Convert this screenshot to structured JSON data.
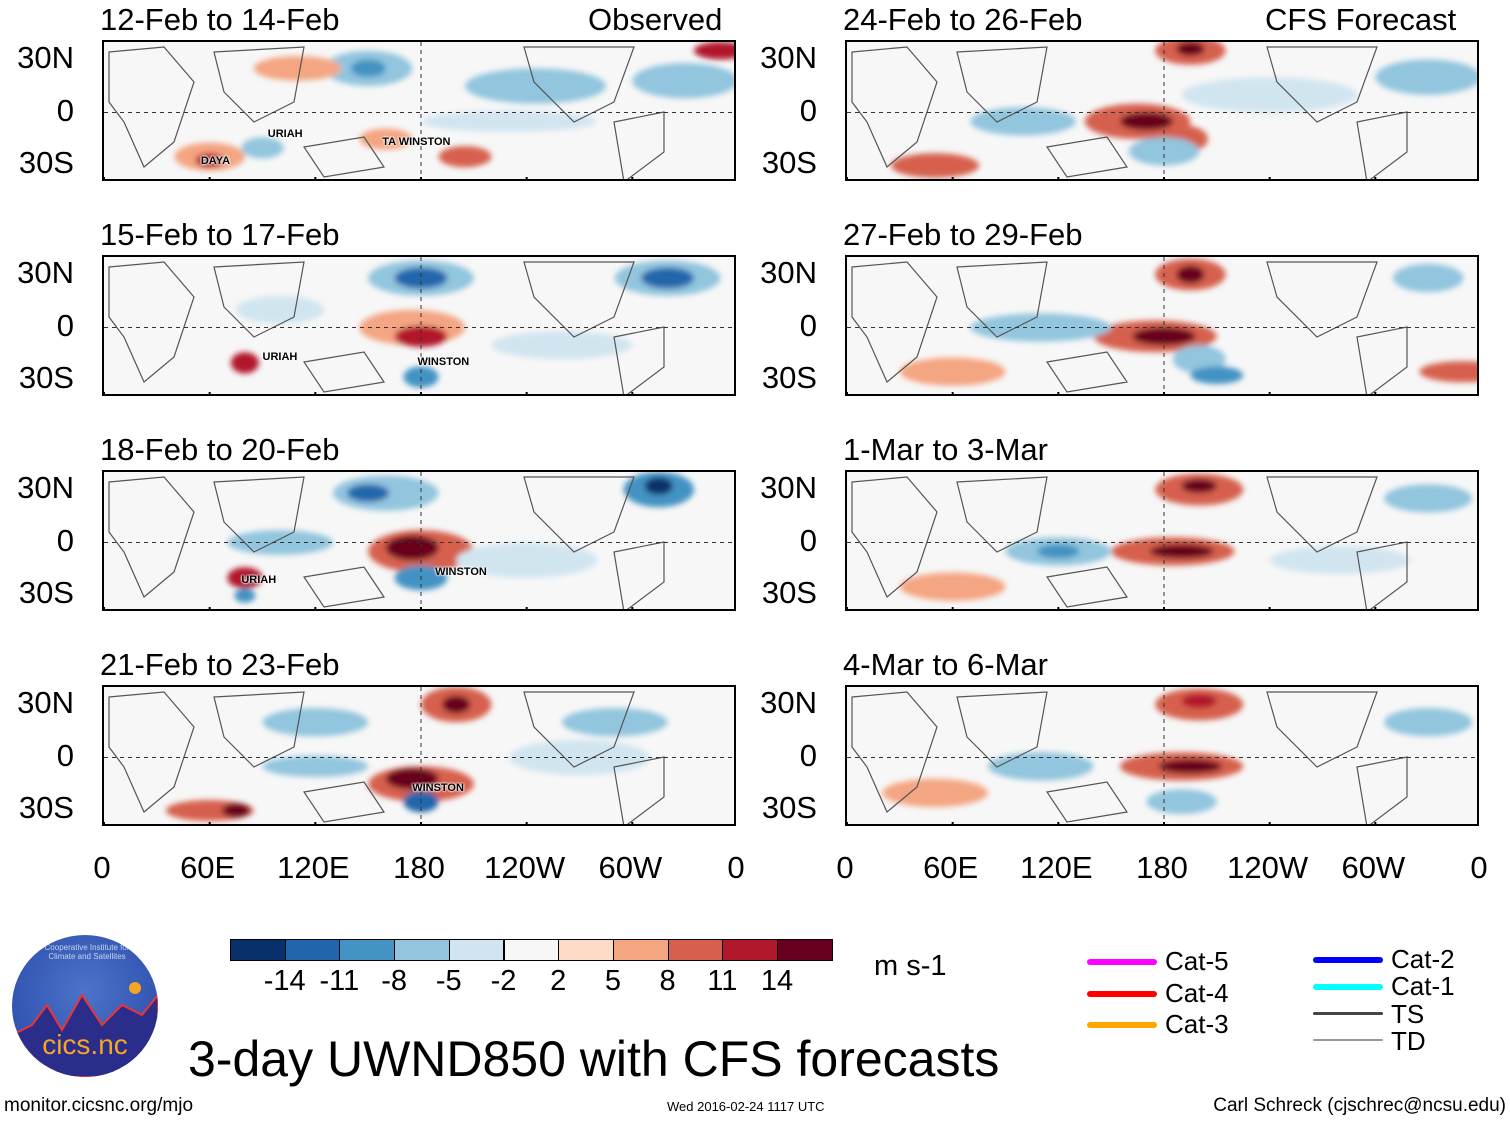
{
  "title": "3-day UWND850 with CFS forecasts",
  "left_header": "Observed",
  "right_header": "CFS Forecast",
  "lat_labels": [
    "30N",
    "0",
    "30S"
  ],
  "lon_labels": [
    "0",
    "60E",
    "120E",
    "180",
    "120W",
    "60W",
    "0"
  ],
  "panels": [
    {
      "title": "12-Feb to 14-Feb",
      "storms": [
        "URIAH",
        "DAYA",
        "TA WINSTON"
      ]
    },
    {
      "title": "15-Feb to 17-Feb",
      "storms": [
        "URIAH",
        "WINSTON"
      ]
    },
    {
      "title": "18-Feb to 20-Feb",
      "storms": [
        "URIAH",
        "WINSTON"
      ]
    },
    {
      "title": "21-Feb to 23-Feb",
      "storms": [
        "WINSTON"
      ]
    },
    {
      "title": "24-Feb to 26-Feb",
      "storms": []
    },
    {
      "title": "27-Feb to 29-Feb",
      "storms": []
    },
    {
      "title": "1-Mar to 3-Mar",
      "storms": []
    },
    {
      "title": "4-Mar to 6-Mar",
      "storms": []
    }
  ],
  "colorbar": {
    "colors": [
      "#08306b",
      "#2166ac",
      "#4393c3",
      "#92c5de",
      "#d1e5f0",
      "#f7f7f7",
      "#fddbc7",
      "#f4a582",
      "#d6604d",
      "#b2182b",
      "#67001f"
    ],
    "labels": [
      "-14",
      "-11",
      "-8",
      "-5",
      "-2",
      "2",
      "5",
      "8",
      "11",
      "14"
    ],
    "units": "m s-1"
  },
  "track_legend": [
    {
      "label": "Cat-5",
      "color": "#ff00ff"
    },
    {
      "label": "Cat-4",
      "color": "#ff0000"
    },
    {
      "label": "Cat-3",
      "color": "#ffa500"
    },
    {
      "label": "Cat-2",
      "color": "#0000ff"
    },
    {
      "label": "Cat-1",
      "color": "#00ffff"
    },
    {
      "label": "TS",
      "color": "#444444"
    },
    {
      "label": "TD",
      "color": "#999999"
    }
  ],
  "logo_text": "cics.nc",
  "logo_ring": "Cooperative Institute for Climate and Satellites",
  "footer": {
    "url": "monitor.cicsnc.org/mjo",
    "timestamp": "Wed 2016-02-24 1117 UTC",
    "author": "Carl Schreck (cjschrec@ncsu.edu)"
  }
}
